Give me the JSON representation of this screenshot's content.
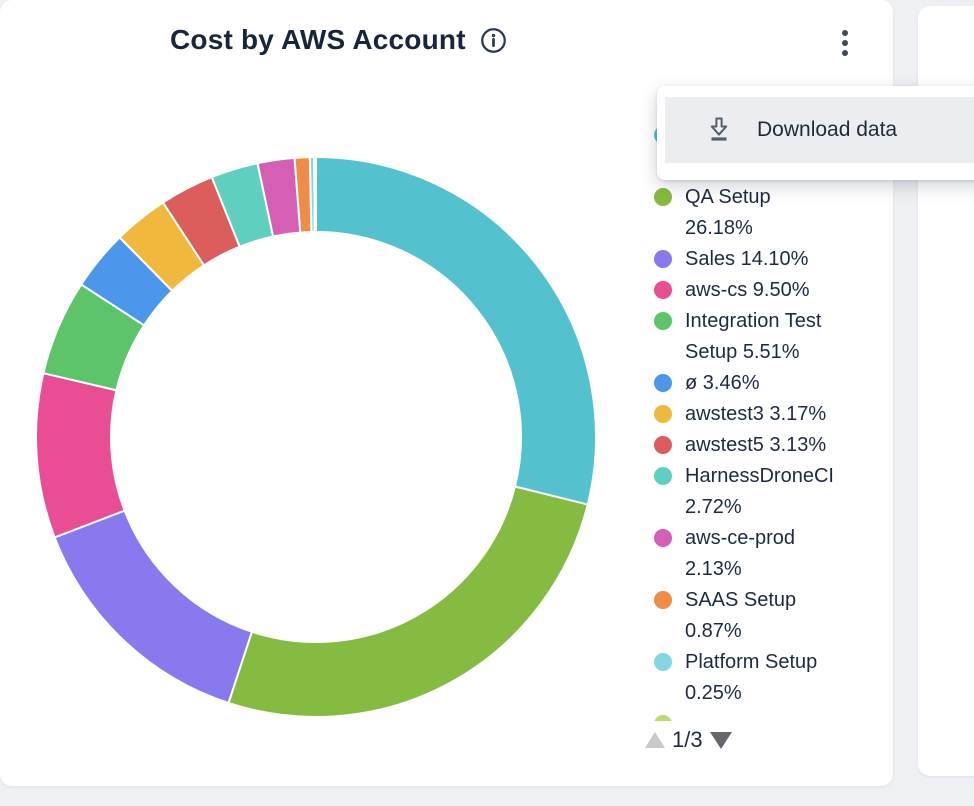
{
  "header": {
    "title": "Cost by AWS Account"
  },
  "menu": {
    "items": [
      {
        "icon": "download-icon",
        "label": "Download data"
      }
    ]
  },
  "chart_data": {
    "type": "pie",
    "subtype": "donut",
    "title": "Cost by AWS Account",
    "unit": "%",
    "start_angle_deg": -90,
    "direction": "clockwise",
    "slices": [
      {
        "label": "",
        "pct": 28.88,
        "color": "#54C1CF",
        "legend_lines": [
          "",
          ""
        ]
      },
      {
        "label": "QA Setup",
        "pct": 26.18,
        "color": "#85BB40",
        "legend_lines": [
          "QA Setup",
          "26.18%"
        ]
      },
      {
        "label": "Sales",
        "pct": 14.1,
        "color": "#8979EF",
        "legend_lines": [
          "Sales 14.10%"
        ]
      },
      {
        "label": "aws-cs",
        "pct": 9.5,
        "color": "#E94D94",
        "legend_lines": [
          "aws-cs 9.50%"
        ]
      },
      {
        "label": "Integration Test Setup",
        "pct": 5.51,
        "color": "#5EC46A",
        "legend_lines": [
          "Integration Test",
          "Setup 5.51%"
        ]
      },
      {
        "label": "ø",
        "pct": 3.46,
        "color": "#4C96EB",
        "legend_lines": [
          "ø 3.46%"
        ]
      },
      {
        "label": "awstest3",
        "pct": 3.17,
        "color": "#F1B83E",
        "legend_lines": [
          "awstest3 3.17%"
        ]
      },
      {
        "label": "awstest5",
        "pct": 3.13,
        "color": "#DC5E5C",
        "legend_lines": [
          "awstest5 3.13%"
        ]
      },
      {
        "label": "HarnessDroneCI",
        "pct": 2.72,
        "color": "#5FCFC0",
        "legend_lines": [
          "HarnessDroneCI",
          "2.72%"
        ]
      },
      {
        "label": "aws-ce-prod",
        "pct": 2.13,
        "color": "#D45FB5",
        "legend_lines": [
          "aws-ce-prod",
          "2.13%"
        ]
      },
      {
        "label": "SAAS Setup",
        "pct": 0.87,
        "color": "#EF8C47",
        "legend_lines": [
          "SAAS Setup",
          "0.87%"
        ]
      },
      {
        "label": "Platform Setup",
        "pct": 0.25,
        "color": "#85D6E3",
        "legend_lines": [
          "Platform Setup",
          "0.25%"
        ]
      },
      {
        "label": "",
        "pct": 0.1,
        "color": "#B9DB6F",
        "legend_lines": [
          ""
        ]
      }
    ]
  },
  "legend": {
    "pagination": {
      "label": "1/3"
    }
  }
}
